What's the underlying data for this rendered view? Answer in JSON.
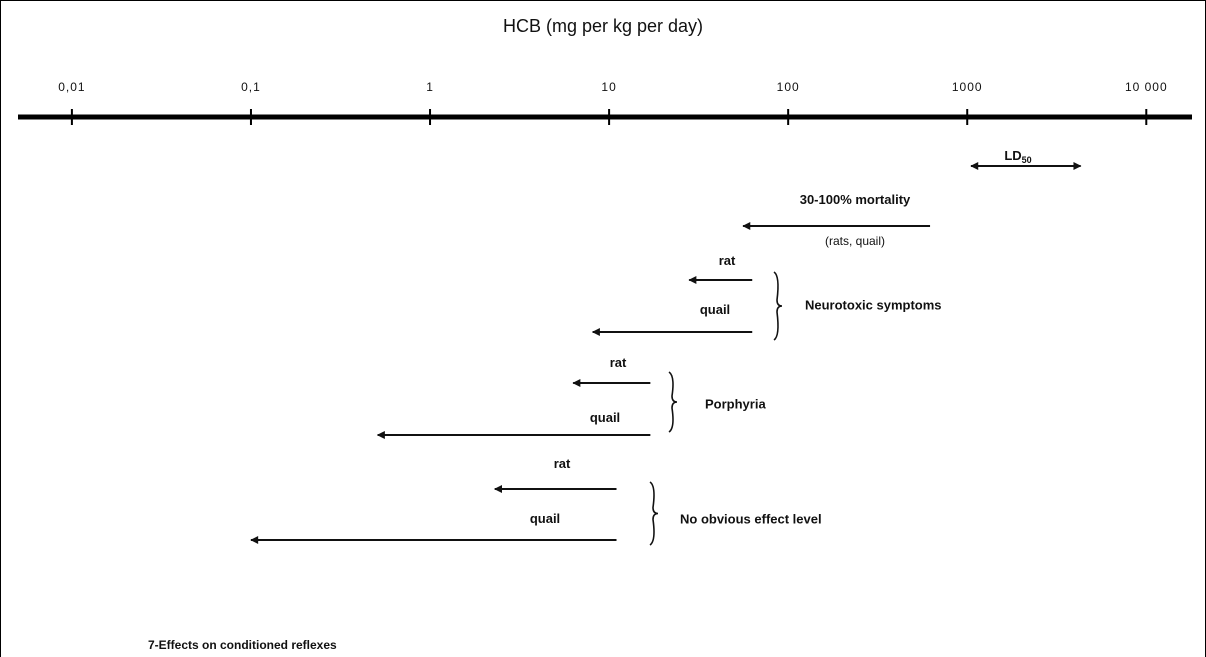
{
  "chart_data": {
    "type": "arrow",
    "title": "HCB (mg per kg per day)",
    "xscale": "log",
    "xlim": [
      0.005,
      18000
    ],
    "xticks": [
      {
        "value": 0.01,
        "label": "0,01"
      },
      {
        "value": 0.1,
        "label": "0,1"
      },
      1,
      10,
      100,
      1000,
      {
        "value": 10000,
        "label": "10 000"
      }
    ],
    "groups": [
      {
        "arrows": [
          {
            "name": "LD",
            "name_sub": "50",
            "from": 1050,
            "to": 4300,
            "heads": "both"
          }
        ]
      },
      {
        "arrows": [
          {
            "name": "30-100% mortality",
            "note": "(rats, quail)",
            "from": 620,
            "to": 56,
            "heads": "end"
          }
        ]
      },
      {
        "label": "Neurotoxic symptoms",
        "arrows": [
          {
            "name": "rat",
            "from": 63,
            "to": 28,
            "heads": "end"
          },
          {
            "name": "quail",
            "from": 63,
            "to": 8.1,
            "heads": "end"
          }
        ]
      },
      {
        "label": "Porphyria",
        "arrows": [
          {
            "name": "rat",
            "from": 17,
            "to": 6.3,
            "heads": "end"
          },
          {
            "name": "quail",
            "from": 17,
            "to": 0.51,
            "heads": "end"
          }
        ]
      },
      {
        "label": "No obvious effect level",
        "arrows": [
          {
            "name": "rat",
            "from": 11,
            "to": 2.3,
            "heads": "end"
          },
          {
            "name": "quail",
            "from": 11,
            "to": 0.1,
            "heads": "end"
          }
        ]
      }
    ],
    "caption": "7-Effects on conditioned reflexes"
  }
}
